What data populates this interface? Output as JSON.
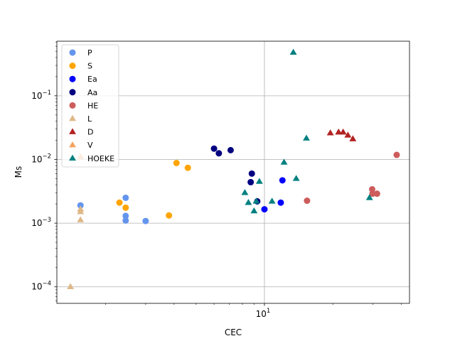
{
  "chart_data": {
    "type": "scatter",
    "title": "",
    "xlabel": "CEC",
    "ylabel": "Ms",
    "xscale": "log",
    "yscale": "log",
    "xlim": [
      1.22,
      43.5
    ],
    "ylim": [
      5.5e-05,
      0.72
    ],
    "grid": true,
    "legend_position": "top-left",
    "x_ticks": [
      {
        "value": 10,
        "mantissa": "10",
        "exponent": "1"
      }
    ],
    "y_ticks": [
      {
        "value": 0.0001,
        "mantissa": "10",
        "exponent": "−4"
      },
      {
        "value": 0.001,
        "mantissa": "10",
        "exponent": "−3"
      },
      {
        "value": 0.01,
        "mantissa": "10",
        "exponent": "−2"
      },
      {
        "value": 0.1,
        "mantissa": "10",
        "exponent": "−1"
      }
    ],
    "series": [
      {
        "name": "P",
        "marker": "circle",
        "color": "#6495ED",
        "points": [
          [
            1.55,
            0.0019
          ],
          [
            2.45,
            0.0025
          ],
          [
            2.45,
            0.0013
          ],
          [
            2.45,
            0.0011
          ],
          [
            3.0,
            0.00108
          ]
        ]
      },
      {
        "name": "S",
        "marker": "circle",
        "color": "#FFA500",
        "points": [
          [
            2.3,
            0.0021
          ],
          [
            2.45,
            0.00175
          ],
          [
            3.8,
            0.00132
          ],
          [
            4.1,
            0.0088
          ],
          [
            4.6,
            0.0074
          ]
        ]
      },
      {
        "name": "Ea",
        "marker": "circle",
        "color": "#0000FF",
        "points": [
          [
            10.0,
            0.00165
          ],
          [
            11.8,
            0.0021
          ],
          [
            12.0,
            0.0047
          ]
        ]
      },
      {
        "name": "Aa",
        "marker": "circle",
        "color": "#000080",
        "points": [
          [
            6.0,
            0.0148
          ],
          [
            6.3,
            0.0125
          ],
          [
            7.1,
            0.014
          ],
          [
            8.7,
            0.0044
          ],
          [
            8.8,
            0.006
          ],
          [
            9.3,
            0.0022
          ]
        ]
      },
      {
        "name": "HE",
        "marker": "circle",
        "color": "#CD5C5C",
        "points": [
          [
            15.4,
            0.00225
          ],
          [
            29.8,
            0.0034
          ],
          [
            29.9,
            0.0029
          ],
          [
            31.3,
            0.0029
          ],
          [
            38.2,
            0.0118
          ]
        ]
      },
      {
        "name": "L",
        "marker": "triangle",
        "color": "#DEB887",
        "points": [
          [
            1.4,
            0.0001
          ],
          [
            1.55,
            0.00165
          ],
          [
            1.55,
            0.0015
          ],
          [
            1.55,
            0.00112
          ]
        ]
      },
      {
        "name": "D",
        "marker": "triangle",
        "color": "#B22222",
        "points": [
          [
            19.5,
            0.026
          ],
          [
            21.2,
            0.0268
          ],
          [
            22.2,
            0.0268
          ],
          [
            23.3,
            0.024
          ],
          [
            24.5,
            0.021
          ]
        ]
      },
      {
        "name": "V",
        "marker": "triangle",
        "color": "#F4A460",
        "points": [
          [
            1.55,
            0.011
          ]
        ]
      },
      {
        "name": "HOEKE",
        "marker": "triangle",
        "color": "#008080",
        "points": [
          [
            8.2,
            0.003
          ],
          [
            8.5,
            0.0021
          ],
          [
            9.0,
            0.00155
          ],
          [
            9.2,
            0.0022
          ],
          [
            9.5,
            0.0045
          ],
          [
            10.8,
            0.0022
          ],
          [
            12.2,
            0.009
          ],
          [
            13.4,
            0.48
          ],
          [
            13.8,
            0.005
          ],
          [
            15.3,
            0.0215
          ],
          [
            29.0,
            0.0025
          ]
        ]
      }
    ]
  }
}
